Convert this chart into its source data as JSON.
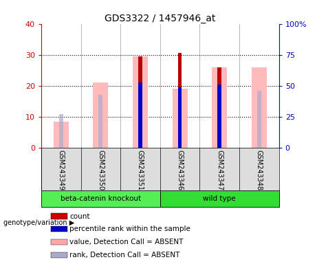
{
  "title": "GDS3322 / 1457946_at",
  "samples": [
    "GSM243349",
    "GSM243350",
    "GSM243351",
    "GSM243346",
    "GSM243347",
    "GSM243348"
  ],
  "group_info": [
    {
      "name": "beta-catenin knockout",
      "start": 0,
      "end": 2,
      "color": "#55ee55"
    },
    {
      "name": "wild type",
      "start": 3,
      "end": 5,
      "color": "#33dd33"
    }
  ],
  "pink_bar_values": [
    8.5,
    21.0,
    29.5,
    19.0,
    26.0,
    26.0
  ],
  "light_blue_values": [
    10.8,
    17.0,
    21.0,
    19.5,
    20.5,
    18.5
  ],
  "dark_red_values": [
    0,
    0,
    29.5,
    30.5,
    26.0,
    0
  ],
  "blue_dot_values": [
    0,
    0,
    21.0,
    19.5,
    20.5,
    0
  ],
  "ylim_left": [
    0,
    40
  ],
  "ylim_right": [
    0,
    100
  ],
  "yticks_left": [
    0,
    10,
    20,
    30,
    40
  ],
  "yticks_right": [
    0,
    25,
    50,
    75,
    100
  ],
  "ytick_labels_right": [
    "0",
    "25",
    "50",
    "75",
    "100%"
  ],
  "left_axis_color": "#cc0000",
  "right_axis_color": "#0000cc",
  "legend_colors": [
    "#cc0000",
    "#0000cc",
    "#ffaaaa",
    "#aaaacc"
  ],
  "legend_labels": [
    "count",
    "percentile rank within the sample",
    "value, Detection Call = ABSENT",
    "rank, Detection Call = ABSENT"
  ]
}
